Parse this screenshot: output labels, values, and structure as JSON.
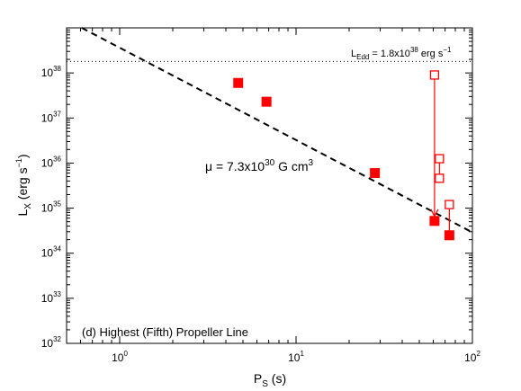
{
  "chart_data": {
    "type": "scatter",
    "title": "",
    "xlabel": {
      "base": "P",
      "sub": "S",
      "unit": " (s)"
    },
    "ylabel": {
      "base": "L",
      "sub": "X",
      "unit_open": " (erg s",
      "unit_sup": "−1",
      "unit_close": ")"
    },
    "x_scale": "log",
    "y_scale": "log",
    "xlim": [
      0.5,
      100
    ],
    "ylim": [
      1e+32,
      1e+39
    ],
    "x_ticks": [
      {
        "value": 1,
        "base": "10",
        "exp": "0"
      },
      {
        "value": 10,
        "base": "10",
        "exp": "1"
      },
      {
        "value": 100,
        "base": "10",
        "exp": "2"
      }
    ],
    "y_ticks": [
      {
        "value": 1e+32,
        "base": "10",
        "exp": "32"
      },
      {
        "value": 1e+33,
        "base": "10",
        "exp": "33"
      },
      {
        "value": 1e+34,
        "base": "10",
        "exp": "34"
      },
      {
        "value": 1e+35,
        "base": "10",
        "exp": "35"
      },
      {
        "value": 1e+36,
        "base": "10",
        "exp": "36"
      },
      {
        "value": 1e+37,
        "base": "10",
        "exp": "37"
      },
      {
        "value": 1e+38,
        "base": "10",
        "exp": "38"
      }
    ],
    "filled_points": [
      {
        "x": 4.7,
        "y": 6e+37
      },
      {
        "x": 6.8,
        "y": 2.3e+37
      },
      {
        "x": 28,
        "y": 6e+35
      },
      {
        "x": 61,
        "y": 5.2e+34
      },
      {
        "x": 74,
        "y": 2.5e+34
      }
    ],
    "open_points": [
      {
        "x": 61,
        "y": 9e+37
      },
      {
        "x": 65,
        "y": 1.25e+36
      },
      {
        "x": 65,
        "y": 4.6e+35
      },
      {
        "x": 74,
        "y": 1.2e+35
      }
    ],
    "connectors": [
      {
        "x": 61,
        "y_from": 9e+37,
        "y_to": 5.2e+34
      },
      {
        "x": 65,
        "y_from": 1.25e+36,
        "y_to": 4.6e+35
      },
      {
        "x": 74,
        "y_from": 1.2e+35,
        "y_to": 2.5e+34
      }
    ],
    "propeller_line": {
      "x": [
        0.5,
        100
      ],
      "y": [
        1.5e+39,
        2.9e+34
      ]
    },
    "eddington_level": 1.8e+38,
    "annotations": {
      "eddington": {
        "base": "L",
        "sub": "Edd",
        "eq": " = 1.8x10",
        "exp": "38",
        "unit": " erg s",
        "unit_sup": "−1"
      },
      "mu": {
        "base": "μ = 7.3x10",
        "exp": "30",
        "unit": " G cm",
        "unit_sup": "3"
      },
      "panel": "(d) Highest (Fifth) Propeller Line"
    },
    "colors": {
      "marker": "#ff0000",
      "axis": "#000000"
    }
  }
}
